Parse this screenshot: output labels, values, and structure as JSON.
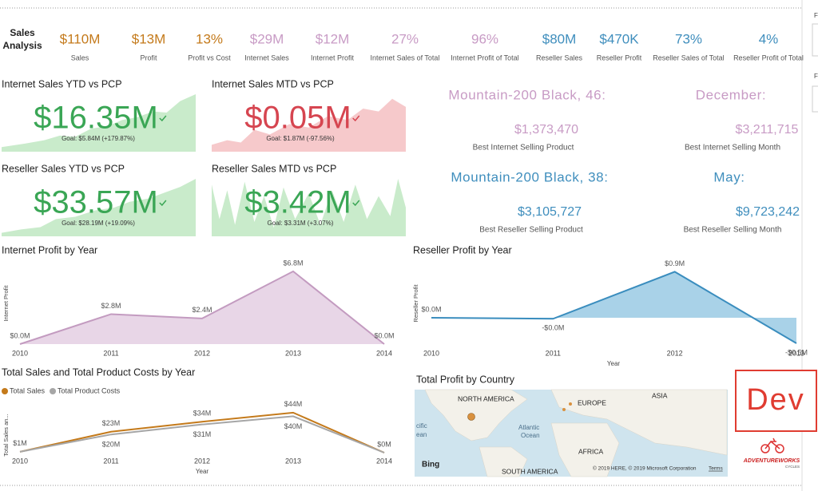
{
  "header": {
    "title_lines": [
      "Sales",
      "Analysis"
    ]
  },
  "kpis": [
    {
      "value": "$110M",
      "label": "Sales",
      "color": "#c47a1b"
    },
    {
      "value": "$13M",
      "label": "Profit",
      "color": "#c47a1b"
    },
    {
      "value": "13%",
      "label": "Profit vs Cost",
      "color": "#c47a1b"
    },
    {
      "value": "$29M",
      "label": "Internet Sales",
      "color": "#c89bc5"
    },
    {
      "value": "$12M",
      "label": "Internet Profit",
      "color": "#c89bc5"
    },
    {
      "value": "27%",
      "label": "Internet Sales of Total",
      "color": "#c89bc5"
    },
    {
      "value": "96%",
      "label": "Internet Profit of Total",
      "color": "#c89bc5"
    },
    {
      "value": "$80M",
      "label": "Reseller Sales",
      "color": "#3f8ebd"
    },
    {
      "value": "$470K",
      "label": "Reseller Profit",
      "color": "#3f8ebd"
    },
    {
      "value": "73%",
      "label": "Reseller Sales of Total",
      "color": "#3f8ebd"
    },
    {
      "value": "4%",
      "label": "Reseller Profit of Total",
      "color": "#3f8ebd"
    }
  ],
  "tiles": [
    {
      "title": "Internet Sales YTD vs PCP",
      "value": "$16.35M",
      "goal": "Goal: $5.84M (+179.87%)",
      "value_color": "#3aa655",
      "fill_color": "#c9ebcb"
    },
    {
      "title": "Internet Sales MTD vs PCP",
      "value": "$0.05M",
      "goal": "Goal: $1.87M (-97.56%)",
      "value_color": "#d64550",
      "fill_color": "#f6c9cb"
    },
    {
      "title": "Reseller Sales YTD vs PCP",
      "value": "$33.57M",
      "goal": "Goal: $28.19M (+19.09%)",
      "value_color": "#3aa655",
      "fill_color": "#c9ebcb"
    },
    {
      "title": "Reseller Sales MTD vs PCP",
      "value": "$3.42M",
      "goal": "Goal: $3.31M (+3.07%)",
      "value_color": "#3aa655",
      "fill_color": "#c9ebcb"
    }
  ],
  "cards": [
    {
      "heading": "Mountain-200 Black, 46:",
      "value": "$1,373,470",
      "caption": "Best Internet Selling Product",
      "color": "#c89bc5"
    },
    {
      "heading": "December:",
      "value": "$3,211,715",
      "caption": "Best Internet Selling Month",
      "color": "#c89bc5"
    },
    {
      "heading": "Mountain-200 Black, 38:",
      "value": "$3,105,727",
      "caption": "Best Reseller Selling Product",
      "color": "#3f8ebd"
    },
    {
      "heading": "May:",
      "value": "$9,723,242",
      "caption": "Best Reseller Selling Month",
      "color": "#3f8ebd"
    }
  ],
  "charts": [
    {
      "type": "area",
      "title": "Internet Profit by Year",
      "y_label": "Internet Profit",
      "categories": [
        "2010",
        "2011",
        "2012",
        "2013",
        "2014"
      ],
      "values": [
        0,
        2.8,
        2.4,
        6.8,
        0
      ],
      "value_labels": [
        "$0.0M",
        "$2.8M",
        "$2.4M",
        "$6.8M",
        "$0.0M"
      ],
      "color": "#c39bc0",
      "fill": "#e8d6e7"
    },
    {
      "type": "area",
      "title": "Reseller Profit by Year",
      "x_label": "Year",
      "y_label": "Reseller Profit",
      "categories": [
        "2010",
        "2011",
        "2012",
        "2013"
      ],
      "values": [
        0,
        -0.02,
        0.9,
        -0.5
      ],
      "value_labels": [
        "$0.0M",
        "-$0.0M",
        "$0.9M",
        "-$0.5M"
      ],
      "color": "#3a8dbe",
      "fill": "#a9d2e8"
    },
    {
      "type": "line",
      "title": "Total Sales and Total Product Costs by Year",
      "x_label": "Year",
      "y_label": "Total Sales an...",
      "categories": [
        "2010",
        "2011",
        "2012",
        "2013",
        "2014"
      ],
      "series": [
        {
          "name": "Total Sales",
          "color": "#c47a1b",
          "values": [
            1,
            23,
            34,
            44,
            0
          ],
          "value_labels": [
            "$1M",
            "$23M",
            "$34M",
            "$44M",
            "$0M"
          ]
        },
        {
          "name": "Total Product Costs",
          "color": "#a6a6a6",
          "values": [
            1,
            20,
            31,
            40,
            0
          ],
          "value_labels": [
            null,
            "$20M",
            "$31M",
            "$40M",
            null
          ]
        }
      ]
    }
  ],
  "map": {
    "title": "Total Profit by Country",
    "labels": [
      "NORTH AMERICA",
      "EUROPE",
      "ASIA",
      "Atlantic",
      "Ocean",
      "AFRICA",
      "SOUTH AMERICA",
      "cific",
      "ean"
    ],
    "brand": "Bing",
    "attribution": "© 2019 HERE, © 2019 Microsoft Corporation",
    "terms": "Terms"
  },
  "badge": {
    "text": "Dev"
  },
  "logo": {
    "name": "ADVENTUREWORKS",
    "sub": "CYCLES"
  },
  "sidebar": {
    "labels": [
      "F",
      "F"
    ]
  }
}
